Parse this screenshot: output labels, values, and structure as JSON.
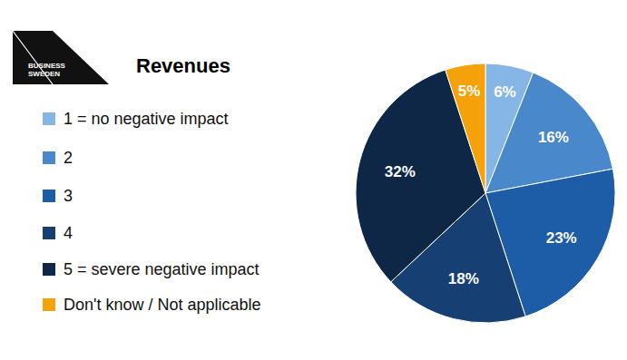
{
  "chart_data": {
    "type": "pie",
    "title": "Revenues",
    "annotations": [
      "BUSINESS",
      "SWEDEN"
    ],
    "categories": [
      "1 = no negative impact",
      "2",
      "3",
      "4",
      "5 = severe negative impact",
      "Don't know / Not applicable"
    ],
    "values": [
      6,
      16,
      23,
      18,
      32,
      5
    ],
    "value_labels": [
      "6%",
      "16%",
      "23%",
      "18%",
      "32%",
      "5%"
    ],
    "colors": [
      "#86b6e6",
      "#4a88cc",
      "#1d5ca6",
      "#163f74",
      "#0e2746",
      "#f5a20a"
    ],
    "data_labels": true,
    "legend": "left"
  }
}
